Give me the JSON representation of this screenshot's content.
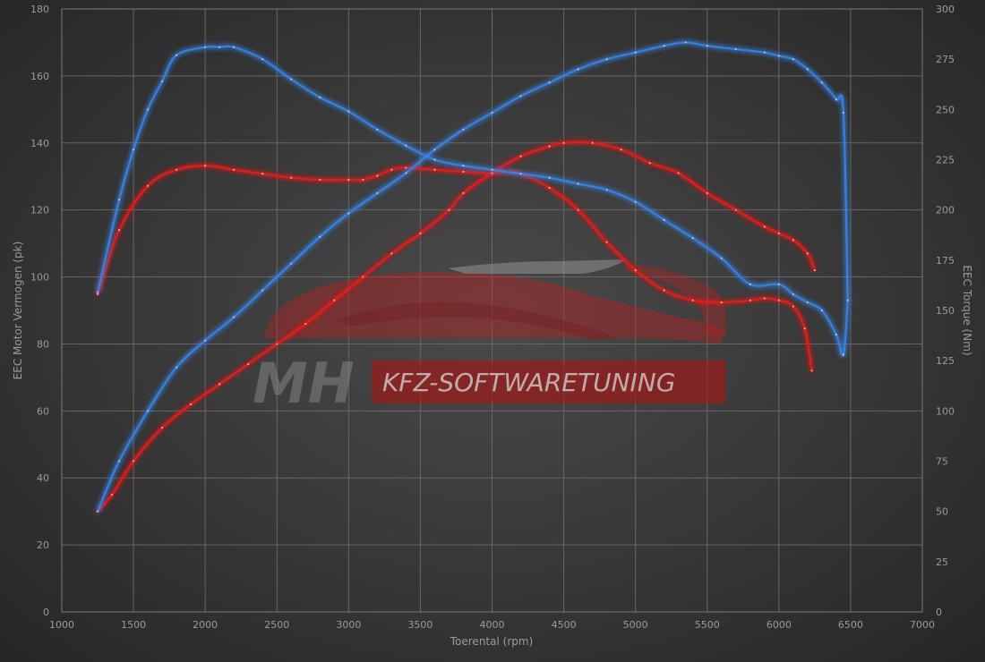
{
  "chart_data": {
    "type": "line",
    "xlabel": "Toerental (rpm)",
    "ylabel_left": "EEC Motor Vermogen (pk)",
    "ylabel_right": "EEC Torque (Nm)",
    "xlim": [
      1000,
      7000
    ],
    "ylim_left": [
      0,
      180
    ],
    "ylim_right": [
      0,
      300
    ],
    "x_ticks": [
      "1000",
      "1500",
      "2000",
      "2500",
      "3000",
      "3500",
      "4000",
      "4500",
      "5000",
      "5500",
      "6000",
      "6500",
      "7000"
    ],
    "y_left_ticks": [
      "0",
      "20",
      "40",
      "60",
      "80",
      "100",
      "120",
      "140",
      "160",
      "180"
    ],
    "y_right_ticks": [
      "0",
      "25",
      "50",
      "75",
      "100",
      "125",
      "150",
      "175",
      "200",
      "225",
      "250",
      "275",
      "300"
    ],
    "grid": true,
    "watermark": {
      "initials": "MH",
      "text": "KFZ-SOFTWARETUNING"
    },
    "series": [
      {
        "axis": "right",
        "color": "#e0201f",
        "x": [
          1250,
          1400,
          1600,
          1800,
          2000,
          2200,
          2400,
          2600,
          2800,
          3000,
          3100,
          3200,
          3300,
          3400,
          3600,
          3800,
          4000,
          4100,
          4200,
          4400,
          4600,
          4800,
          5000,
          5200,
          5400,
          5600,
          5800,
          5900,
          6000,
          6100,
          6180,
          6230
        ],
        "y": [
          158,
          190,
          212,
          220,
          222,
          220,
          218,
          216,
          215,
          215,
          215,
          217,
          220,
          221,
          220,
          219,
          218,
          219,
          218,
          211,
          200,
          184,
          170,
          160,
          155,
          154,
          155,
          156,
          155,
          152,
          141,
          120
        ]
      },
      {
        "axis": "left",
        "color": "#e0201f",
        "x": [
          1250,
          1350,
          1500,
          1700,
          1900,
          2100,
          2300,
          2500,
          2700,
          2900,
          3100,
          3300,
          3500,
          3700,
          3800,
          4000,
          4200,
          4400,
          4500,
          4700,
          4900,
          5100,
          5300,
          5500,
          5700,
          5900,
          6000,
          6100,
          6200,
          6250
        ],
        "y": [
          30,
          35,
          45,
          55,
          62,
          68,
          74,
          80,
          86,
          93,
          100,
          107,
          113,
          120,
          125,
          131,
          136,
          139,
          140,
          140,
          138,
          134,
          131,
          125,
          120,
          115,
          113,
          111,
          107,
          102
        ]
      },
      {
        "axis": "right",
        "color": "#3a82e0",
        "x": [
          1250,
          1400,
          1500,
          1600,
          1700,
          1800,
          2000,
          2100,
          2200,
          2400,
          2600,
          2800,
          3000,
          3200,
          3400,
          3600,
          3800,
          4000,
          4200,
          4400,
          4600,
          4800,
          5000,
          5200,
          5400,
          5600,
          5800,
          6000,
          6100,
          6200,
          6300,
          6400,
          6450,
          6480
        ],
        "y": [
          159,
          205,
          230,
          250,
          264,
          277,
          281,
          281,
          281,
          275,
          265,
          256,
          249,
          240,
          232,
          225,
          222,
          220,
          218,
          216,
          213,
          210,
          204,
          195,
          186,
          176,
          163,
          163,
          158,
          154,
          150,
          138,
          128,
          155
        ]
      },
      {
        "axis": "left",
        "color": "#3a82e0",
        "x": [
          1250,
          1400,
          1600,
          1800,
          2000,
          2200,
          2400,
          2600,
          2800,
          3000,
          3200,
          3400,
          3600,
          3800,
          4000,
          4200,
          4400,
          4600,
          4800,
          5000,
          5200,
          5350,
          5500,
          5700,
          5900,
          6000,
          6100,
          6200,
          6300,
          6400,
          6450,
          6480
        ],
        "y": [
          30,
          45,
          60,
          73,
          81,
          88,
          96,
          104,
          112,
          119,
          125,
          131,
          138,
          144,
          149,
          154,
          158,
          162,
          165,
          167,
          169,
          170,
          169,
          168,
          167,
          166,
          165,
          162,
          158,
          153,
          149,
          93
        ]
      }
    ]
  }
}
